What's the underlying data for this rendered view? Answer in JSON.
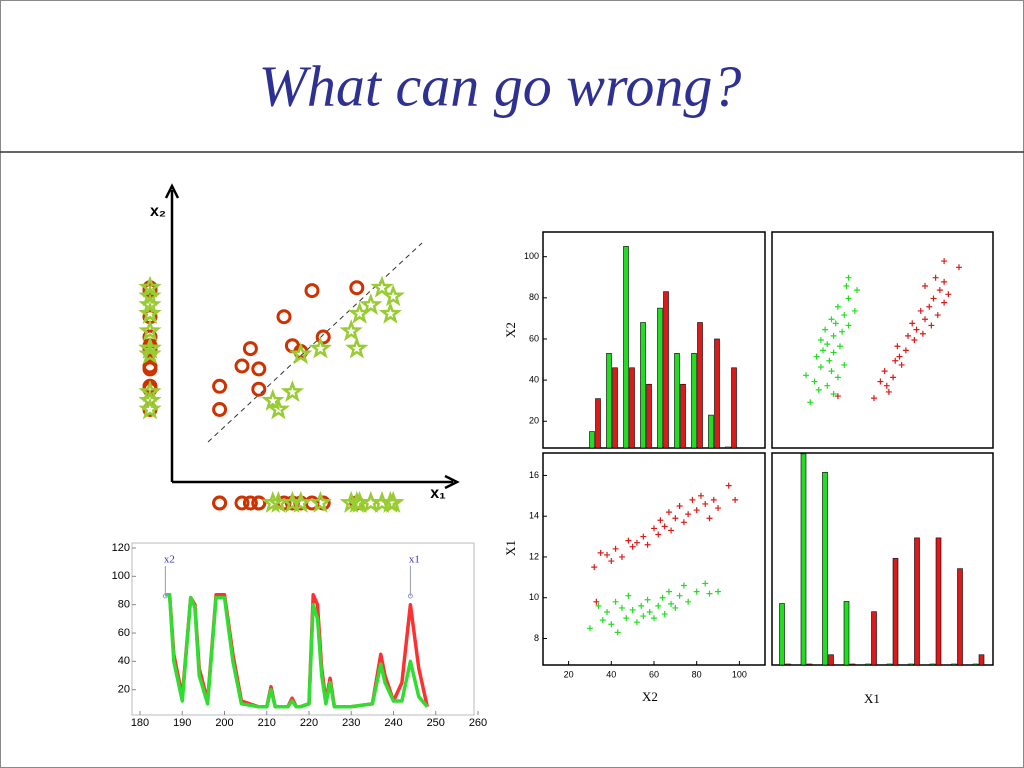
{
  "title": "What can go wrong?",
  "chart_data": [
    {
      "type": "scatter",
      "xlabel": "x₁",
      "ylabel": "x₂",
      "xlim": [
        0,
        10
      ],
      "ylim": [
        0,
        10
      ],
      "projections": true,
      "series": [
        {
          "color": "#cc3300",
          "marker": "circle",
          "x": [
            5.0,
            6.6,
            4.0,
            5.4,
            4.3,
            2.8,
            2.5,
            3.1,
            4.6,
            1.7,
            3.1,
            1.7
          ],
          "y": [
            6.6,
            6.7,
            5.7,
            5.0,
            4.7,
            4.6,
            4.0,
            3.9,
            4.5,
            3.3,
            3.2,
            2.5
          ]
        },
        {
          "color": "#99cc33",
          "marker": "star",
          "x": [
            7.5,
            7.9,
            7.1,
            6.7,
            7.8,
            6.4,
            6.6,
            5.3,
            4.6,
            4.3,
            3.6,
            3.8
          ],
          "y": [
            6.7,
            6.4,
            6.1,
            5.8,
            5.8,
            5.2,
            4.6,
            4.6,
            4.4,
            3.1,
            2.8,
            2.5
          ]
        }
      ]
    },
    {
      "type": "line",
      "xlim": [
        180,
        260
      ],
      "xticks": [
        180,
        190,
        200,
        210,
        220,
        230,
        240,
        250,
        260
      ],
      "ylim": [
        0,
        120
      ],
      "yticks": [
        20,
        40,
        60,
        80,
        100,
        120
      ],
      "annotations": [
        {
          "text": "x2",
          "x": 186
        },
        {
          "text": "x1",
          "x": 244
        }
      ],
      "x": [
        186,
        187,
        188,
        190,
        192,
        193,
        194,
        196,
        198,
        200,
        202,
        204,
        208,
        210,
        211,
        212,
        215,
        216,
        217,
        218,
        220,
        221,
        222,
        223,
        224,
        225,
        226,
        230,
        235,
        237,
        238,
        240,
        242,
        244,
        246,
        248
      ],
      "series": [
        {
          "color": "#ff3030",
          "values": [
            87,
            87,
            45,
            15,
            85,
            80,
            35,
            12,
            87,
            87,
            45,
            12,
            8,
            8,
            22,
            8,
            8,
            14,
            8,
            8,
            10,
            87,
            80,
            35,
            12,
            28,
            8,
            8,
            10,
            45,
            30,
            12,
            25,
            80,
            35,
            8
          ]
        },
        {
          "color": "#30dd30",
          "values": [
            87,
            87,
            40,
            12,
            85,
            78,
            30,
            10,
            85,
            85,
            40,
            10,
            8,
            8,
            20,
            8,
            8,
            12,
            8,
            8,
            10,
            80,
            70,
            30,
            10,
            25,
            8,
            8,
            10,
            38,
            25,
            12,
            12,
            40,
            15,
            8
          ]
        }
      ]
    },
    {
      "type": "scatter-matrix",
      "variables": [
        "X2",
        "X1"
      ],
      "lims": [
        [
          8,
          112
        ],
        [
          6.7,
          17.1
        ]
      ],
      "ticks": [
        [
          20,
          40,
          60,
          80,
          100
        ],
        [
          8,
          10,
          12,
          14,
          16
        ]
      ],
      "hist_lims": [
        [
          7,
          112
        ],
        [
          7,
          110.4
        ]
      ],
      "hist_yticks": [
        20,
        40,
        60,
        80,
        100
      ],
      "series": [
        {
          "color": "#22dd22",
          "points": [
            [
              30,
              8.5
            ],
            [
              34,
              9.6
            ],
            [
              36,
              8.9
            ],
            [
              38,
              9.3
            ],
            [
              40,
              8.7
            ],
            [
              42,
              9.8
            ],
            [
              43,
              8.3
            ],
            [
              45,
              9.5
            ],
            [
              47,
              9.0
            ],
            [
              48,
              10.1
            ],
            [
              50,
              9.4
            ],
            [
              52,
              8.8
            ],
            [
              54,
              9.6
            ],
            [
              55,
              9.1
            ],
            [
              57,
              9.9
            ],
            [
              58,
              9.3
            ],
            [
              60,
              9.0
            ],
            [
              62,
              9.6
            ],
            [
              64,
              10.0
            ],
            [
              65,
              9.2
            ],
            [
              67,
              10.3
            ],
            [
              68,
              9.7
            ],
            [
              70,
              9.5
            ],
            [
              72,
              10.1
            ],
            [
              74,
              10.6
            ],
            [
              76,
              9.8
            ],
            [
              80,
              10.3
            ],
            [
              84,
              10.7
            ],
            [
              86,
              10.2
            ],
            [
              90,
              10.3
            ]
          ],
          "hist": [
            [
              15,
              53,
              105,
              68,
              75,
              53,
              53,
              23,
              0
            ],
            [
              37,
              110,
              101,
              38,
              0,
              0,
              0,
              0,
              0,
              0
            ]
          ]
        },
        {
          "color": "#dd1a1a",
          "points": [
            [
              32,
              11.5
            ],
            [
              35,
              12.2
            ],
            [
              38,
              12.1
            ],
            [
              40,
              11.8
            ],
            [
              42,
              12.4
            ],
            [
              45,
              12.0
            ],
            [
              48,
              12.8
            ],
            [
              50,
              12.5
            ],
            [
              52,
              12.7
            ],
            [
              55,
              13.0
            ],
            [
              57,
              12.6
            ],
            [
              60,
              13.4
            ],
            [
              62,
              13.1
            ],
            [
              63,
              13.8
            ],
            [
              65,
              13.5
            ],
            [
              67,
              14.2
            ],
            [
              68,
              13.3
            ],
            [
              70,
              13.9
            ],
            [
              72,
              14.5
            ],
            [
              74,
              13.7
            ],
            [
              76,
              14.1
            ],
            [
              78,
              14.8
            ],
            [
              80,
              14.3
            ],
            [
              82,
              15.0
            ],
            [
              84,
              14.6
            ],
            [
              86,
              13.9
            ],
            [
              88,
              14.8
            ],
            [
              90,
              14.4
            ],
            [
              95,
              15.5
            ],
            [
              98,
              14.8
            ],
            [
              33,
              9.8
            ]
          ],
          "hist": [
            [
              31,
              46,
              46,
              38,
              83,
              38,
              68,
              60,
              46
            ],
            [
              0,
              0,
              12,
              0,
              33,
              59,
              69,
              69,
              54,
              12
            ]
          ]
        }
      ]
    }
  ]
}
